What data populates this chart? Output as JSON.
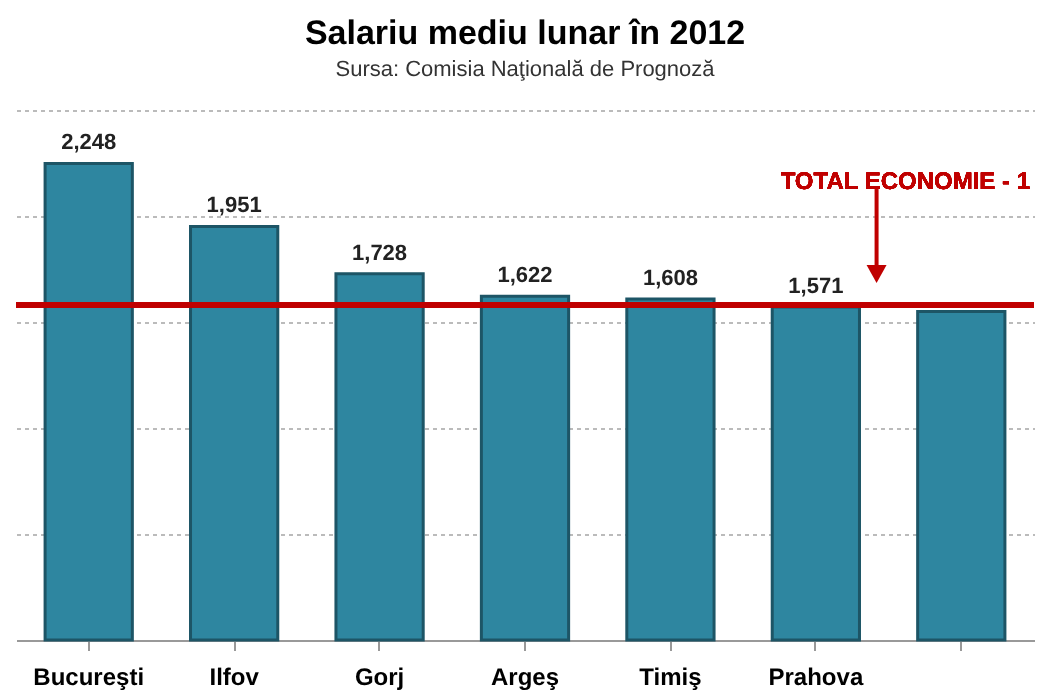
{
  "chart_data": {
    "type": "bar",
    "title": "Salariu mediu lunar în 2012",
    "subtitle": "Sursa: Comisia Naţională de Prognoză",
    "categories": [
      "Bucureşti",
      "Ilfov",
      "Gorj",
      "Argeş",
      "Timiş",
      "Prahova",
      null
    ],
    "values": [
      2248,
      1951,
      1728,
      1622,
      1608,
      1571,
      1550
    ],
    "value_labels": [
      "2,248",
      "1,951",
      "1,728",
      "1,622",
      "1,608",
      "1,571",
      null
    ],
    "color": "#2e86a0",
    "ylim": [
      0,
      2500
    ],
    "yticks": [
      {
        "value": 0,
        "label": null
      },
      {
        "value": 500,
        "label": null
      },
      {
        "value": 1000,
        "label": null
      },
      {
        "value": 1500,
        "label": null
      },
      {
        "value": 2000,
        "label": null
      },
      {
        "value": 2500,
        "label": null
      }
    ],
    "tick_labels": "x",
    "grid": "y",
    "ref_lines": [
      {
        "axis": "y",
        "value": 1580,
        "label": "TOTAL ECONOMIE - 1",
        "color": "#c00000"
      }
    ]
  }
}
